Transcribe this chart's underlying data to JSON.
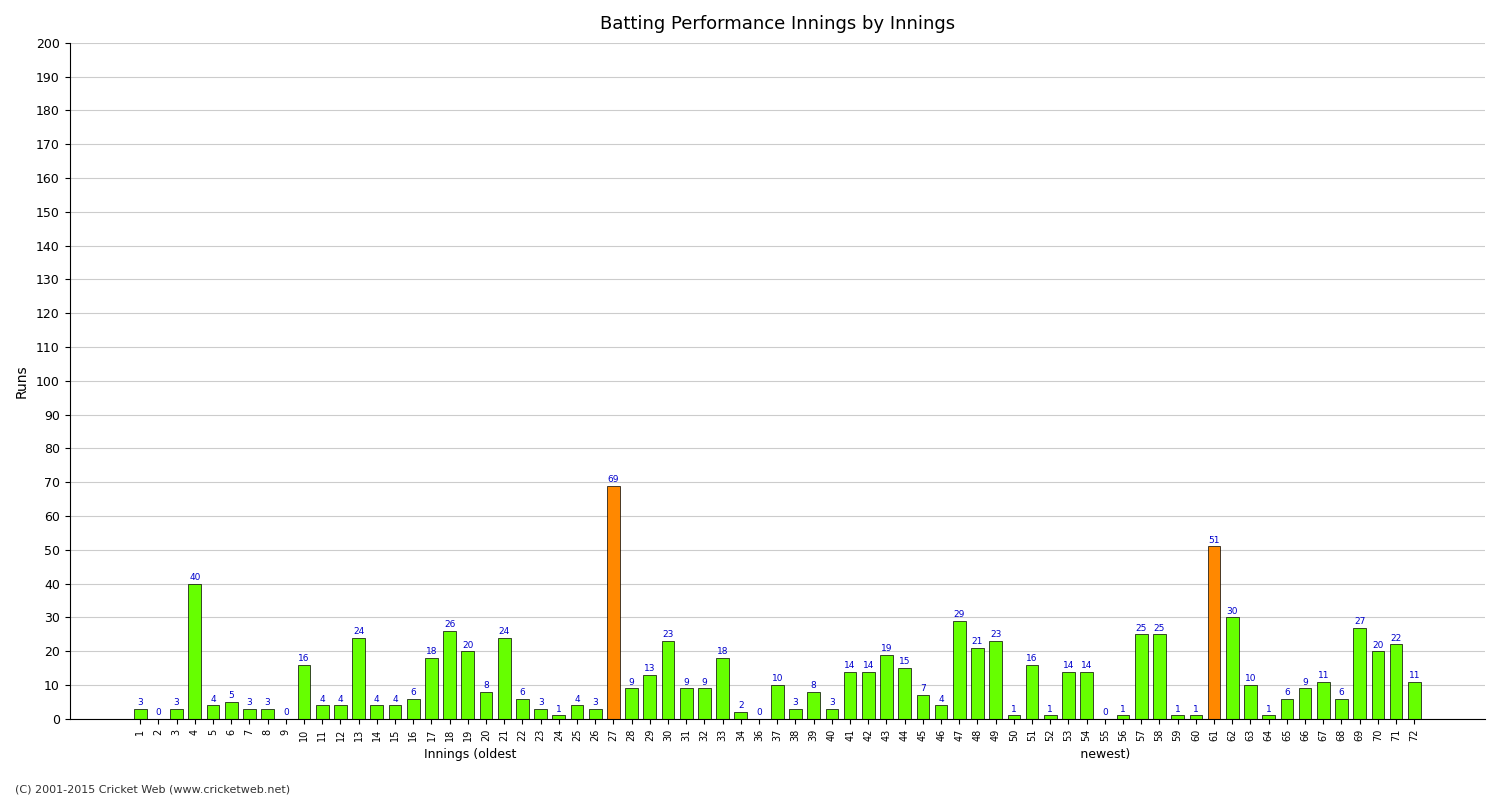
{
  "title": "Batting Performance Innings by Innings",
  "xlabel": "Innings (oldest                                                                                                                                             newest)",
  "ylabel": "Runs",
  "ylim": [
    0,
    200
  ],
  "yticks": [
    0,
    10,
    20,
    30,
    40,
    50,
    60,
    70,
    80,
    90,
    100,
    110,
    120,
    130,
    140,
    150,
    160,
    170,
    180,
    190,
    200
  ],
  "background_color": "#ffffff",
  "bar_color_green": "#66ff00",
  "bar_color_orange": "#ff8800",
  "value_color": "#0000cc",
  "innings_x": [
    1,
    2,
    3,
    4,
    5,
    6,
    7,
    8,
    9,
    10,
    11,
    12,
    13,
    14,
    15,
    16,
    17,
    18,
    19,
    20,
    21,
    22,
    23,
    24,
    25,
    26,
    27,
    28,
    29,
    30,
    31,
    32,
    33,
    34,
    36,
    37,
    38,
    39,
    40,
    41,
    42,
    43,
    44,
    45,
    46,
    47,
    48,
    49,
    50,
    51,
    52,
    53,
    54,
    55,
    56,
    57,
    58,
    59,
    60,
    61,
    62,
    63,
    64,
    65,
    66,
    67,
    68,
    69,
    70,
    71,
    72
  ],
  "values": [
    3,
    0,
    3,
    40,
    4,
    5,
    3,
    3,
    0,
    16,
    4,
    4,
    24,
    4,
    4,
    6,
    18,
    26,
    20,
    8,
    24,
    6,
    3,
    1,
    4,
    3,
    69,
    9,
    13,
    23,
    9,
    9,
    18,
    2,
    0,
    10,
    3,
    8,
    3,
    14,
    14,
    19,
    15,
    7,
    4,
    29,
    21,
    23,
    1,
    16,
    1,
    14,
    14,
    0,
    1,
    25,
    25,
    1,
    1,
    51,
    30,
    10,
    1,
    6,
    9,
    11,
    6,
    27,
    20,
    22,
    11
  ],
  "is_orange": [
    false,
    false,
    false,
    false,
    false,
    false,
    false,
    false,
    false,
    false,
    false,
    false,
    false,
    false,
    false,
    false,
    false,
    false,
    false,
    false,
    false,
    false,
    false,
    false,
    false,
    false,
    true,
    false,
    false,
    false,
    false,
    false,
    false,
    false,
    false,
    false,
    false,
    false,
    false,
    false,
    false,
    false,
    false,
    false,
    false,
    false,
    false,
    false,
    false,
    false,
    false,
    false,
    false,
    false,
    false,
    false,
    false,
    false,
    false,
    true,
    false,
    false,
    false,
    false,
    false,
    false,
    false,
    false,
    false,
    false,
    false
  ],
  "footer": "(C) 2001-2015 Cricket Web (www.cricketweb.net)"
}
